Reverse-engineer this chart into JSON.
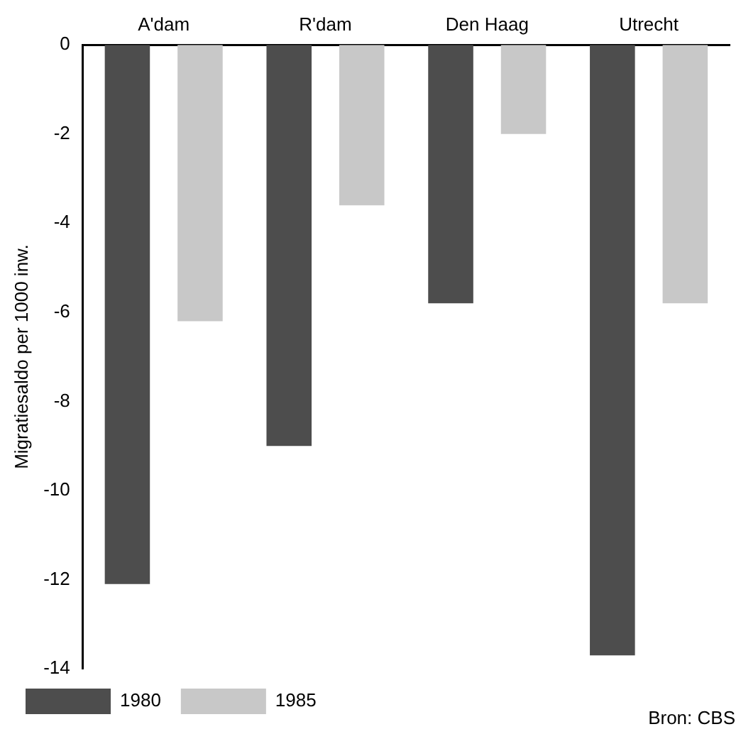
{
  "chart_data": {
    "type": "bar",
    "ylabel": "Migratiesaldo per 1000 inw.",
    "categories": [
      "A'dam",
      "R'dam",
      "Den Haag",
      "Utrecht"
    ],
    "series": [
      {
        "name": "1980",
        "color": "#4d4d4d",
        "values": [
          -12.1,
          -9.0,
          -5.8,
          -13.7
        ]
      },
      {
        "name": "1985",
        "color": "#c8c8c8",
        "values": [
          -6.2,
          -3.6,
          -2.0,
          -5.8
        ]
      }
    ],
    "ylim": [
      -14,
      0
    ],
    "yticks": [
      0,
      -2,
      -4,
      -6,
      -8,
      -10,
      -12,
      -14
    ],
    "grid": false,
    "legend": "bottom left",
    "annotations": [
      "Bron: CBS"
    ]
  }
}
